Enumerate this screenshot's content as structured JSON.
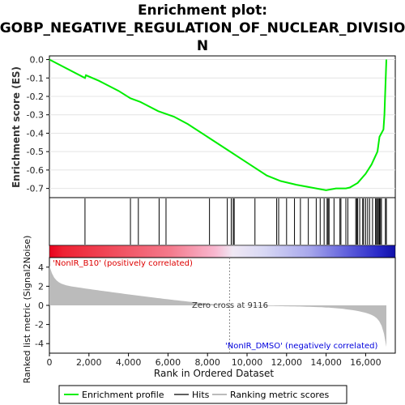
{
  "chart_data": {
    "type": "line",
    "title_lines": [
      "Enrichment plot:",
      "GOBP_NEGATIVE_REGULATION_OF_NUCLEAR_DIVISIO",
      "N"
    ],
    "xlabel": "Rank in Ordered Dataset",
    "ylabel_top": "Enrichment score (ES)",
    "ylabel_bottom": "Ranked list metric (Signal2Noise)",
    "xlim": [
      0,
      17500
    ],
    "es_ylim": [
      -0.75,
      0.02
    ],
    "metric_ylim": [
      -5,
      5
    ],
    "x_ticks": [
      0,
      2000,
      4000,
      6000,
      8000,
      10000,
      12000,
      14000,
      16000
    ],
    "x_tick_labels": [
      "0",
      "2,000",
      "4,000",
      "6,000",
      "8,000",
      "10,000",
      "12,000",
      "14,000",
      "16,000"
    ],
    "es_ticks": [
      0.0,
      -0.1,
      -0.2,
      -0.3,
      -0.4,
      -0.5,
      -0.6,
      -0.7
    ],
    "es_tick_labels": [
      "0.0",
      "-0.1",
      "-0.2",
      "-0.3",
      "-0.4",
      "-0.5",
      "-0.6",
      "-0.7"
    ],
    "metric_ticks": [
      4,
      2,
      0,
      -2,
      -4
    ],
    "metric_tick_labels": [
      "4",
      "2",
      "0",
      "-2",
      "-4"
    ],
    "series": [
      {
        "name": "Enrichment profile",
        "color": "#00ee00",
        "x": [
          0,
          1800,
          1850,
          2500,
          3500,
          4100,
          4600,
          5500,
          6300,
          7000,
          8000,
          9000,
          10000,
          11000,
          11700,
          12500,
          13500,
          14000,
          14500,
          15000,
          15200,
          15600,
          16000,
          16300,
          16600,
          16700,
          16900,
          16950,
          17000,
          17050
        ],
        "y": [
          0.0,
          -0.1,
          -0.085,
          -0.115,
          -0.17,
          -0.21,
          -0.23,
          -0.28,
          -0.31,
          -0.35,
          -0.42,
          -0.49,
          -0.56,
          -0.63,
          -0.66,
          -0.68,
          -0.7,
          -0.71,
          -0.7,
          -0.7,
          -0.695,
          -0.67,
          -0.62,
          -0.57,
          -0.5,
          -0.42,
          -0.38,
          -0.3,
          -0.15,
          0.0
        ]
      }
    ],
    "hits": [
      1800,
      4100,
      4500,
      5550,
      5900,
      8100,
      9000,
      9200,
      9300,
      9350,
      10400,
      11500,
      11600,
      12000,
      12400,
      12700,
      13100,
      13500,
      13700,
      13900,
      14050,
      14100,
      14150,
      14400,
      14700,
      14750,
      15000,
      15100,
      15500,
      15550,
      15600,
      15700,
      15850,
      15900,
      16000,
      16100,
      16200,
      16350,
      16500,
      16550,
      16600,
      16650,
      16700,
      16750,
      16800,
      17000,
      17050
    ],
    "zero_cross": 9116,
    "zero_cross_label": "Zero cross at 9116",
    "pos_label": "'NonIR_B10' (positively correlated)",
    "neg_label": "'NonIR_DMSO' (negatively correlated)",
    "legend": [
      "Enrichment profile",
      "Hits",
      "Ranking metric scores"
    ],
    "colors": {
      "es_line": "#00ee00",
      "hits": "#000000",
      "metric_fill": "#bbbbbb",
      "pos_text": "#dd0000",
      "neg_text": "#0000dd",
      "zero_line": "#888888"
    }
  }
}
